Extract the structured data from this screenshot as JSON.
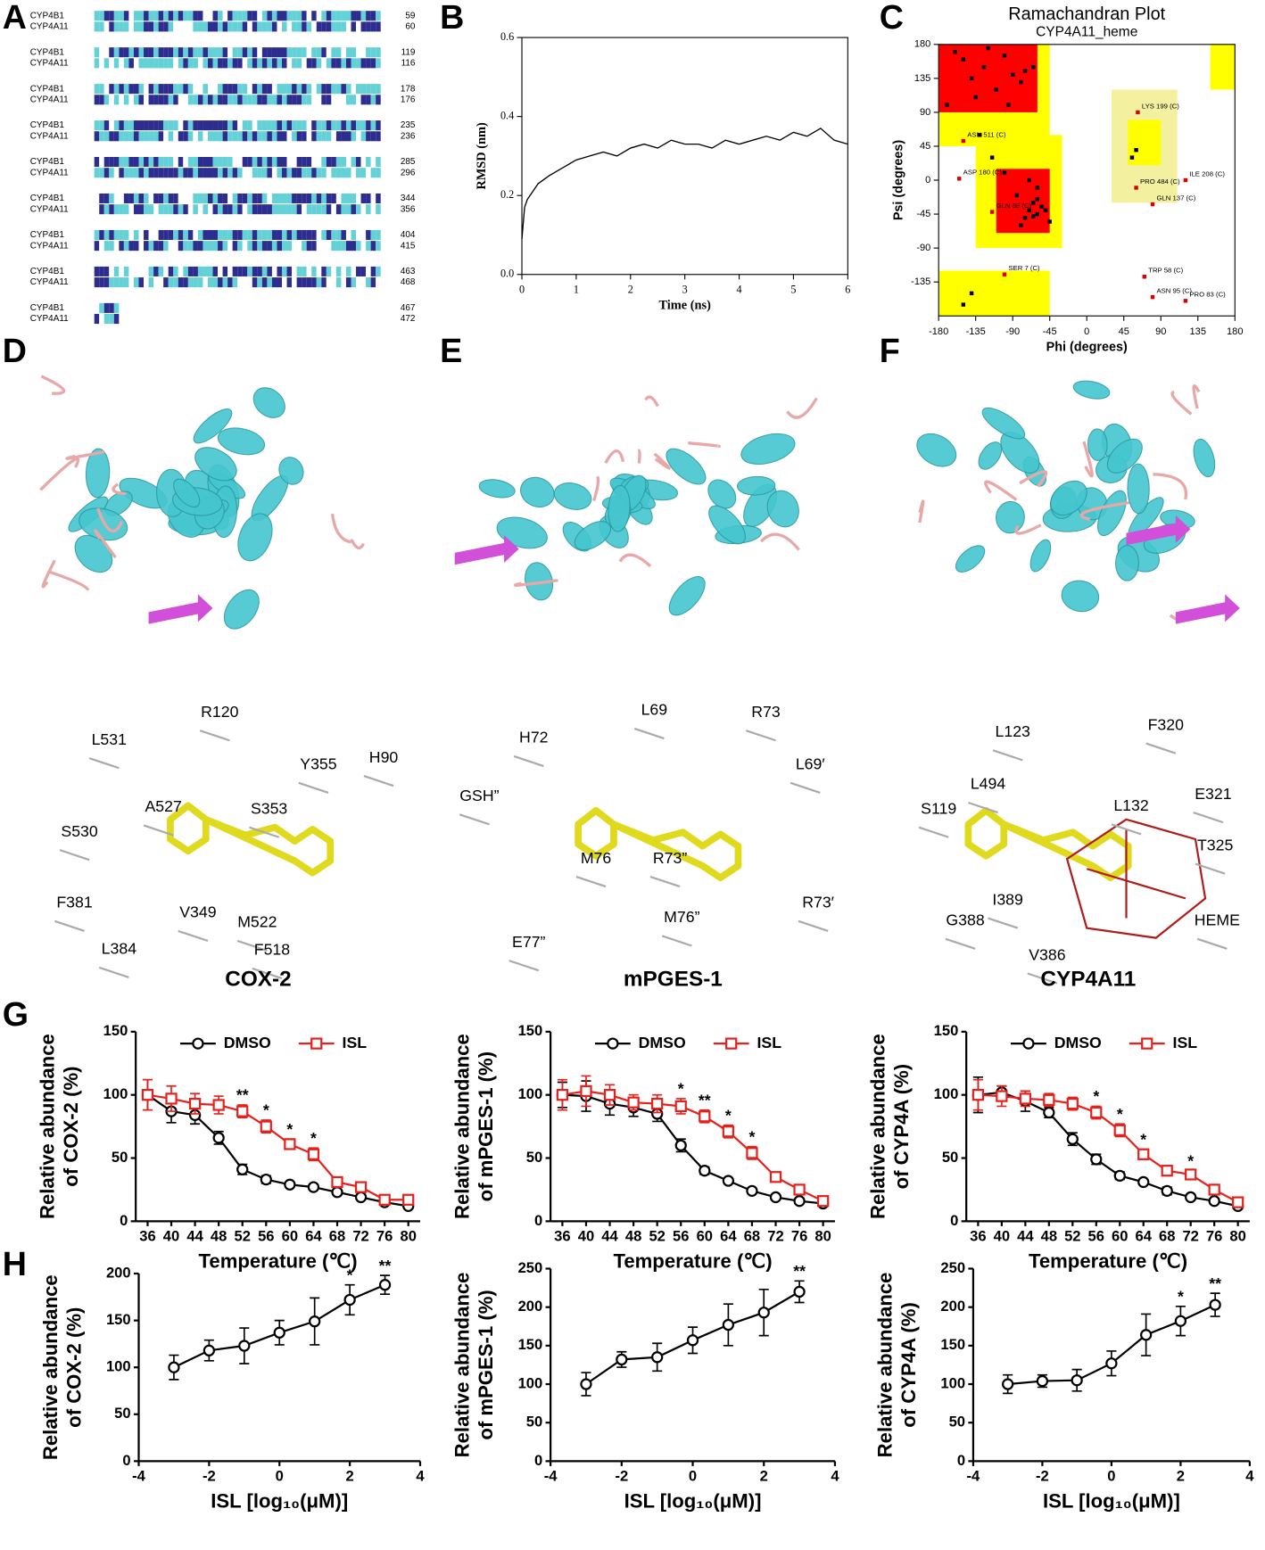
{
  "panel_letters": [
    "A",
    "B",
    "C",
    "D",
    "E",
    "F",
    "G",
    "H"
  ],
  "alignment": {
    "rows": [
      {
        "names": [
          "CYP4B1",
          "CYP4A11"
        ],
        "ends": [
          59,
          60
        ]
      },
      {
        "names": [
          "CYP4B1",
          "CYP4A11"
        ],
        "ends": [
          119,
          116
        ]
      },
      {
        "names": [
          "CYP4B1",
          "CYP4A11"
        ],
        "ends": [
          178,
          176
        ]
      },
      {
        "names": [
          "CYP4B1",
          "CYP4A11"
        ],
        "ends": [
          235,
          236
        ]
      },
      {
        "names": [
          "CYP4B1",
          "CYP4A11"
        ],
        "ends": [
          285,
          296
        ]
      },
      {
        "names": [
          "CYP4B1",
          "CYP4A11"
        ],
        "ends": [
          344,
          356
        ]
      },
      {
        "names": [
          "CYP4B1",
          "CYP4A11"
        ],
        "ends": [
          404,
          415
        ]
      },
      {
        "names": [
          "CYP4B1",
          "CYP4A11"
        ],
        "ends": [
          463,
          468
        ]
      },
      {
        "names": [
          "CYP4B1",
          "CYP4A11"
        ],
        "ends": [
          467,
          472
        ]
      }
    ]
  },
  "structures": [
    {
      "residues": [
        "R120",
        "L531",
        "Y355",
        "H90",
        "A527",
        "S353",
        "S530",
        "V349",
        "M522",
        "F381",
        "L384",
        "F518"
      ]
    },
    {
      "residues": [
        "L69",
        "R73",
        "H72",
        "L69′",
        "GSH”",
        "M76",
        "R73”",
        "R73′",
        "M76”",
        "E77”"
      ]
    },
    {
      "residues": [
        "L123",
        "F320",
        "L494",
        "E321",
        "S119",
        "L132",
        "T325",
        "I389",
        "G388",
        "HEME",
        "V386"
      ]
    }
  ],
  "chart_data": [
    {
      "type": "line",
      "xlabel": "Time (ns)",
      "ylabel": "RMSD (nm)",
      "color": "#000000",
      "x": [
        0,
        0.05,
        0.1,
        0.2,
        0.3,
        0.5,
        0.75,
        1,
        1.25,
        1.5,
        1.75,
        2,
        2.25,
        2.5,
        2.75,
        3,
        3.25,
        3.5,
        3.75,
        4,
        4.25,
        4.5,
        4.75,
        5,
        5.25,
        5.5,
        5.75,
        6
      ],
      "values": [
        0.09,
        0.17,
        0.19,
        0.21,
        0.23,
        0.25,
        0.27,
        0.29,
        0.3,
        0.31,
        0.3,
        0.32,
        0.33,
        0.32,
        0.34,
        0.33,
        0.33,
        0.32,
        0.34,
        0.33,
        0.34,
        0.35,
        0.34,
        0.36,
        0.35,
        0.37,
        0.34,
        0.33
      ],
      "xlim": [
        0,
        6
      ],
      "ylim": [
        0,
        0.6
      ],
      "xticks": [
        0,
        1,
        2,
        3,
        4,
        5,
        6
      ],
      "yticks": [
        {
          "value": 0,
          "label": "0.0"
        },
        0.2,
        0.4,
        0.6
      ]
    },
    {
      "type": "scatter",
      "title": "Ramachandran Plot",
      "subtitle": "CYP4A11_heme",
      "xlabel": "Phi (degrees)",
      "ylabel": "Psi (degrees)",
      "color": "#000000",
      "x": [
        -150,
        -140,
        -125,
        -110,
        -100,
        -90,
        -80,
        -135,
        -120,
        -75,
        -65,
        -95,
        -70,
        -60,
        -55,
        -65,
        -75,
        -85,
        -50,
        -60,
        -70,
        -45,
        -80,
        -100,
        -160,
        -170,
        -130,
        -115,
        -60,
        -65,
        60,
        55,
        -140,
        -150
      ],
      "values": [
        160,
        135,
        150,
        120,
        165,
        140,
        130,
        110,
        175,
        145,
        150,
        100,
        -40,
        -45,
        -35,
        -30,
        -50,
        -20,
        -40,
        -10,
        0,
        -55,
        -60,
        10,
        170,
        100,
        60,
        30,
        -25,
        -48,
        40,
        30,
        -150,
        -165
      ],
      "annotations": [
        {
          "x": -150,
          "y": 52,
          "text": "ASN 511 (C)"
        },
        {
          "x": -155,
          "y": 2,
          "text": "ASP 180 (C)"
        },
        {
          "x": -115,
          "y": -42,
          "text": "GLN 68 (C)"
        },
        {
          "x": 62,
          "y": 90,
          "text": "LYS 199 (C)"
        },
        {
          "x": 60,
          "y": -10,
          "text": "PRO 484 (C)"
        },
        {
          "x": 80,
          "y": -32,
          "text": "GLN 137 (C)"
        },
        {
          "x": 120,
          "y": 0,
          "text": "ILE 208 (C)"
        },
        {
          "x": -100,
          "y": -125,
          "text": "SER 7 (C)"
        },
        {
          "x": 70,
          "y": -128,
          "text": "TRP 58 (C)"
        },
        {
          "x": 80,
          "y": -155,
          "text": "ASN 95 (C)"
        },
        {
          "x": 120,
          "y": -160,
          "text": "PRO 83 (C)"
        }
      ],
      "xlim": [
        -180,
        180
      ],
      "ylim": [
        -180,
        180
      ],
      "xticks": [
        -180,
        -135,
        -90,
        -45,
        0,
        45,
        90,
        135,
        180
      ],
      "yticks": [
        -135,
        -90,
        -45,
        0,
        45,
        90,
        135,
        180
      ]
    },
    {
      "type": "errorline",
      "title": "COX-2",
      "ylabel": [
        "Relative abundance",
        "of COX-2 (%)"
      ],
      "xlabel": "Temperature (℃)",
      "x": [
        36,
        40,
        44,
        48,
        52,
        56,
        60,
        64,
        68,
        72,
        76,
        80
      ],
      "series": [
        {
          "name": "DMSO",
          "color": "#000000",
          "marker": "circle",
          "values": [
            100,
            87,
            84,
            66,
            41,
            33,
            29,
            27,
            23,
            19,
            15,
            12
          ],
          "errors": [
            12,
            9,
            7,
            5,
            4,
            3,
            2,
            2,
            2,
            2,
            1,
            1
          ]
        },
        {
          "name": "ISL",
          "color": "#e8201c",
          "marker": "square",
          "values": [
            100,
            97,
            93,
            92,
            87,
            75,
            61,
            53,
            31,
            27,
            17,
            17
          ],
          "errors": [
            12,
            10,
            8,
            7,
            5,
            5,
            4,
            5,
            2,
            2,
            2,
            2
          ]
        }
      ],
      "annotations": [
        {
          "x": 52,
          "text": "**"
        },
        {
          "x": 56,
          "text": "*"
        },
        {
          "x": 60,
          "text": "*"
        },
        {
          "x": 64,
          "text": "*"
        }
      ],
      "xlim": [
        34,
        82
      ],
      "ylim": [
        0,
        150
      ],
      "xticks": [
        36,
        40,
        44,
        48,
        52,
        56,
        60,
        64,
        68,
        72,
        76,
        80
      ],
      "yticks": [
        0,
        50,
        100,
        150
      ],
      "legend": "top"
    },
    {
      "type": "errorline",
      "title": "mPGES-1",
      "ylabel": [
        "Relative abundance",
        "of mPGES-1 (%)"
      ],
      "xlabel": "Temperature (℃)",
      "x": [
        36,
        40,
        44,
        48,
        52,
        56,
        60,
        64,
        68,
        72,
        76,
        80
      ],
      "series": [
        {
          "name": "DMSO",
          "color": "#000000",
          "marker": "circle",
          "values": [
            100,
            99,
            93,
            90,
            85,
            60,
            40,
            32,
            24,
            19,
            16,
            14
          ],
          "errors": [
            10,
            12,
            9,
            7,
            6,
            5,
            3,
            2,
            2,
            2,
            2,
            1
          ]
        },
        {
          "name": "ISL",
          "color": "#e8201c",
          "marker": "square",
          "values": [
            100,
            103,
            100,
            94,
            93,
            91,
            83,
            71,
            54,
            35,
            25,
            16
          ],
          "errors": [
            12,
            12,
            8,
            6,
            7,
            6,
            5,
            5,
            5,
            3,
            2,
            2
          ]
        }
      ],
      "annotations": [
        {
          "x": 56,
          "text": "*"
        },
        {
          "x": 60,
          "text": "**"
        },
        {
          "x": 64,
          "text": "*"
        },
        {
          "x": 68,
          "text": "*"
        }
      ],
      "xlim": [
        34,
        82
      ],
      "ylim": [
        0,
        150
      ],
      "xticks": [
        36,
        40,
        44,
        48,
        52,
        56,
        60,
        64,
        68,
        72,
        76,
        80
      ],
      "yticks": [
        0,
        50,
        100,
        150
      ],
      "legend": "top"
    },
    {
      "type": "errorline",
      "title": "CYP4A11",
      "ylabel": [
        "Relative abundance",
        "of CYP4A (%)"
      ],
      "xlabel": "Temperature (℃)",
      "x": [
        36,
        40,
        44,
        48,
        52,
        56,
        60,
        64,
        68,
        72,
        76,
        80
      ],
      "series": [
        {
          "name": "DMSO",
          "color": "#000000",
          "marker": "circle",
          "values": [
            100,
            102,
            95,
            86,
            65,
            49,
            36,
            31,
            24,
            19,
            16,
            12
          ],
          "errors": [
            14,
            5,
            8,
            4,
            5,
            4,
            3,
            2,
            3,
            2,
            2,
            2
          ]
        },
        {
          "name": "ISL",
          "color": "#e8201c",
          "marker": "square",
          "values": [
            100,
            99,
            97,
            96,
            93,
            86,
            72,
            53,
            40,
            37,
            25,
            15
          ],
          "errors": [
            12,
            8,
            6,
            5,
            5,
            5,
            5,
            4,
            3,
            3,
            2,
            2
          ]
        }
      ],
      "annotations": [
        {
          "x": 56,
          "text": "*"
        },
        {
          "x": 60,
          "text": "*"
        },
        {
          "x": 64,
          "text": "*"
        },
        {
          "x": 72,
          "text": "*"
        }
      ],
      "xlim": [
        34,
        82
      ],
      "ylim": [
        0,
        150
      ],
      "xticks": [
        36,
        40,
        44,
        48,
        52,
        56,
        60,
        64,
        68,
        72,
        76,
        80
      ],
      "yticks": [
        0,
        50,
        100,
        150
      ],
      "legend": "top"
    },
    {
      "type": "errorline",
      "ylabel": [
        "Relative abundance",
        "of COX-2 (%)"
      ],
      "xlabel": "ISL [log₁₀(μM)]",
      "color": "#000000",
      "marker": "circle",
      "x": [
        -3,
        -2,
        -1,
        0,
        1,
        2,
        3
      ],
      "values": [
        100,
        118,
        123,
        137,
        149,
        172,
        188
      ],
      "errors": [
        13,
        11,
        19,
        13,
        25,
        16,
        10
      ],
      "annotations": [
        {
          "x": 2,
          "text": "*"
        },
        {
          "x": 3,
          "text": "**"
        }
      ],
      "xlim": [
        -4,
        4
      ],
      "ylim": [
        0,
        200
      ],
      "xticks": [
        -4,
        -2,
        0,
        2,
        4
      ],
      "yticks": [
        0,
        50,
        100,
        150,
        200
      ]
    },
    {
      "type": "errorline",
      "ylabel": [
        "Relative abundance",
        "of mPGES-1 (%)"
      ],
      "xlabel": "ISL [log₁₀(μM)]",
      "color": "#000000",
      "marker": "circle",
      "x": [
        -3,
        -2,
        -1,
        0,
        1,
        2,
        3
      ],
      "values": [
        100,
        132,
        135,
        157,
        177,
        193,
        220
      ],
      "errors": [
        15,
        10,
        18,
        17,
        27,
        30,
        14
      ],
      "annotations": [
        {
          "x": 3,
          "text": "**"
        }
      ],
      "xlim": [
        -4,
        4
      ],
      "ylim": [
        0,
        250
      ],
      "xticks": [
        -4,
        -2,
        0,
        2,
        4
      ],
      "yticks": [
        0,
        50,
        100,
        150,
        200,
        250
      ]
    },
    {
      "type": "errorline",
      "ylabel": [
        "Relative abundance",
        "of CYP4A (%)"
      ],
      "xlabel": "ISL [log₁₀(μM)]",
      "color": "#000000",
      "marker": "circle",
      "x": [
        -3,
        -2,
        -1,
        0,
        1,
        2,
        3
      ],
      "values": [
        100,
        104,
        105,
        127,
        164,
        182,
        203
      ],
      "errors": [
        12,
        8,
        14,
        16,
        27,
        19,
        15
      ],
      "annotations": [
        {
          "x": 2,
          "text": "*"
        },
        {
          "x": 3,
          "text": "**"
        }
      ],
      "xlim": [
        -4,
        4
      ],
      "ylim": [
        0,
        250
      ],
      "xticks": [
        -4,
        -2,
        0,
        2,
        4
      ],
      "yticks": [
        0,
        50,
        100,
        150,
        200,
        250
      ]
    }
  ]
}
